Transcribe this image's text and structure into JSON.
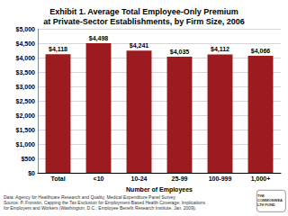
{
  "chart_data": {
    "type": "bar",
    "title": "Exhibit 1. Average Total Employee-Only Premium\nat Private-Sector Establishments, by Firm Size, 2006",
    "x_label": "Number of Employees",
    "categories": [
      "Total",
      "<10",
      "10-24",
      "25-99",
      "100-999",
      "1,000+"
    ],
    "values": [
      4118,
      4498,
      4241,
      4035,
      4112,
      4066
    ],
    "value_labels": [
      "$4,118",
      "$4,498",
      "$4,241",
      "$4,035",
      "$4,112",
      "$4,066"
    ],
    "color": "#9b1b1e",
    "ylim": [
      0,
      5000
    ],
    "yticks": [
      {
        "value": 0,
        "label": "$0"
      },
      {
        "value": 500,
        "label": "$500"
      },
      {
        "value": 1000,
        "label": "$1,000"
      },
      {
        "value": 1500,
        "label": "$1,500"
      },
      {
        "value": 2000,
        "label": "$2,000"
      },
      {
        "value": 2500,
        "label": "$2,500"
      },
      {
        "value": 3000,
        "label": "$3,000"
      },
      {
        "value": 3500,
        "label": "$3,500"
      },
      {
        "value": 4000,
        "label": "$4,000"
      },
      {
        "value": 4500,
        "label": "$4,500"
      },
      {
        "value": 5000,
        "label": "$5,000"
      }
    ],
    "grid": true,
    "data_labels": true,
    "notes": [
      "Data: Agency for Healthcare Research and Quality, Medical Expenditure Panel Survey.",
      "Source: P. Fronstin, Capping the Tax Exclusion for Employment-Based Health Coverage: Implications for Employers and Workers (Washington, D.C.: Employee Benefit Research Institute, Jan. 2009)."
    ],
    "logo": "THE COMMONWEALTH FUND"
  }
}
